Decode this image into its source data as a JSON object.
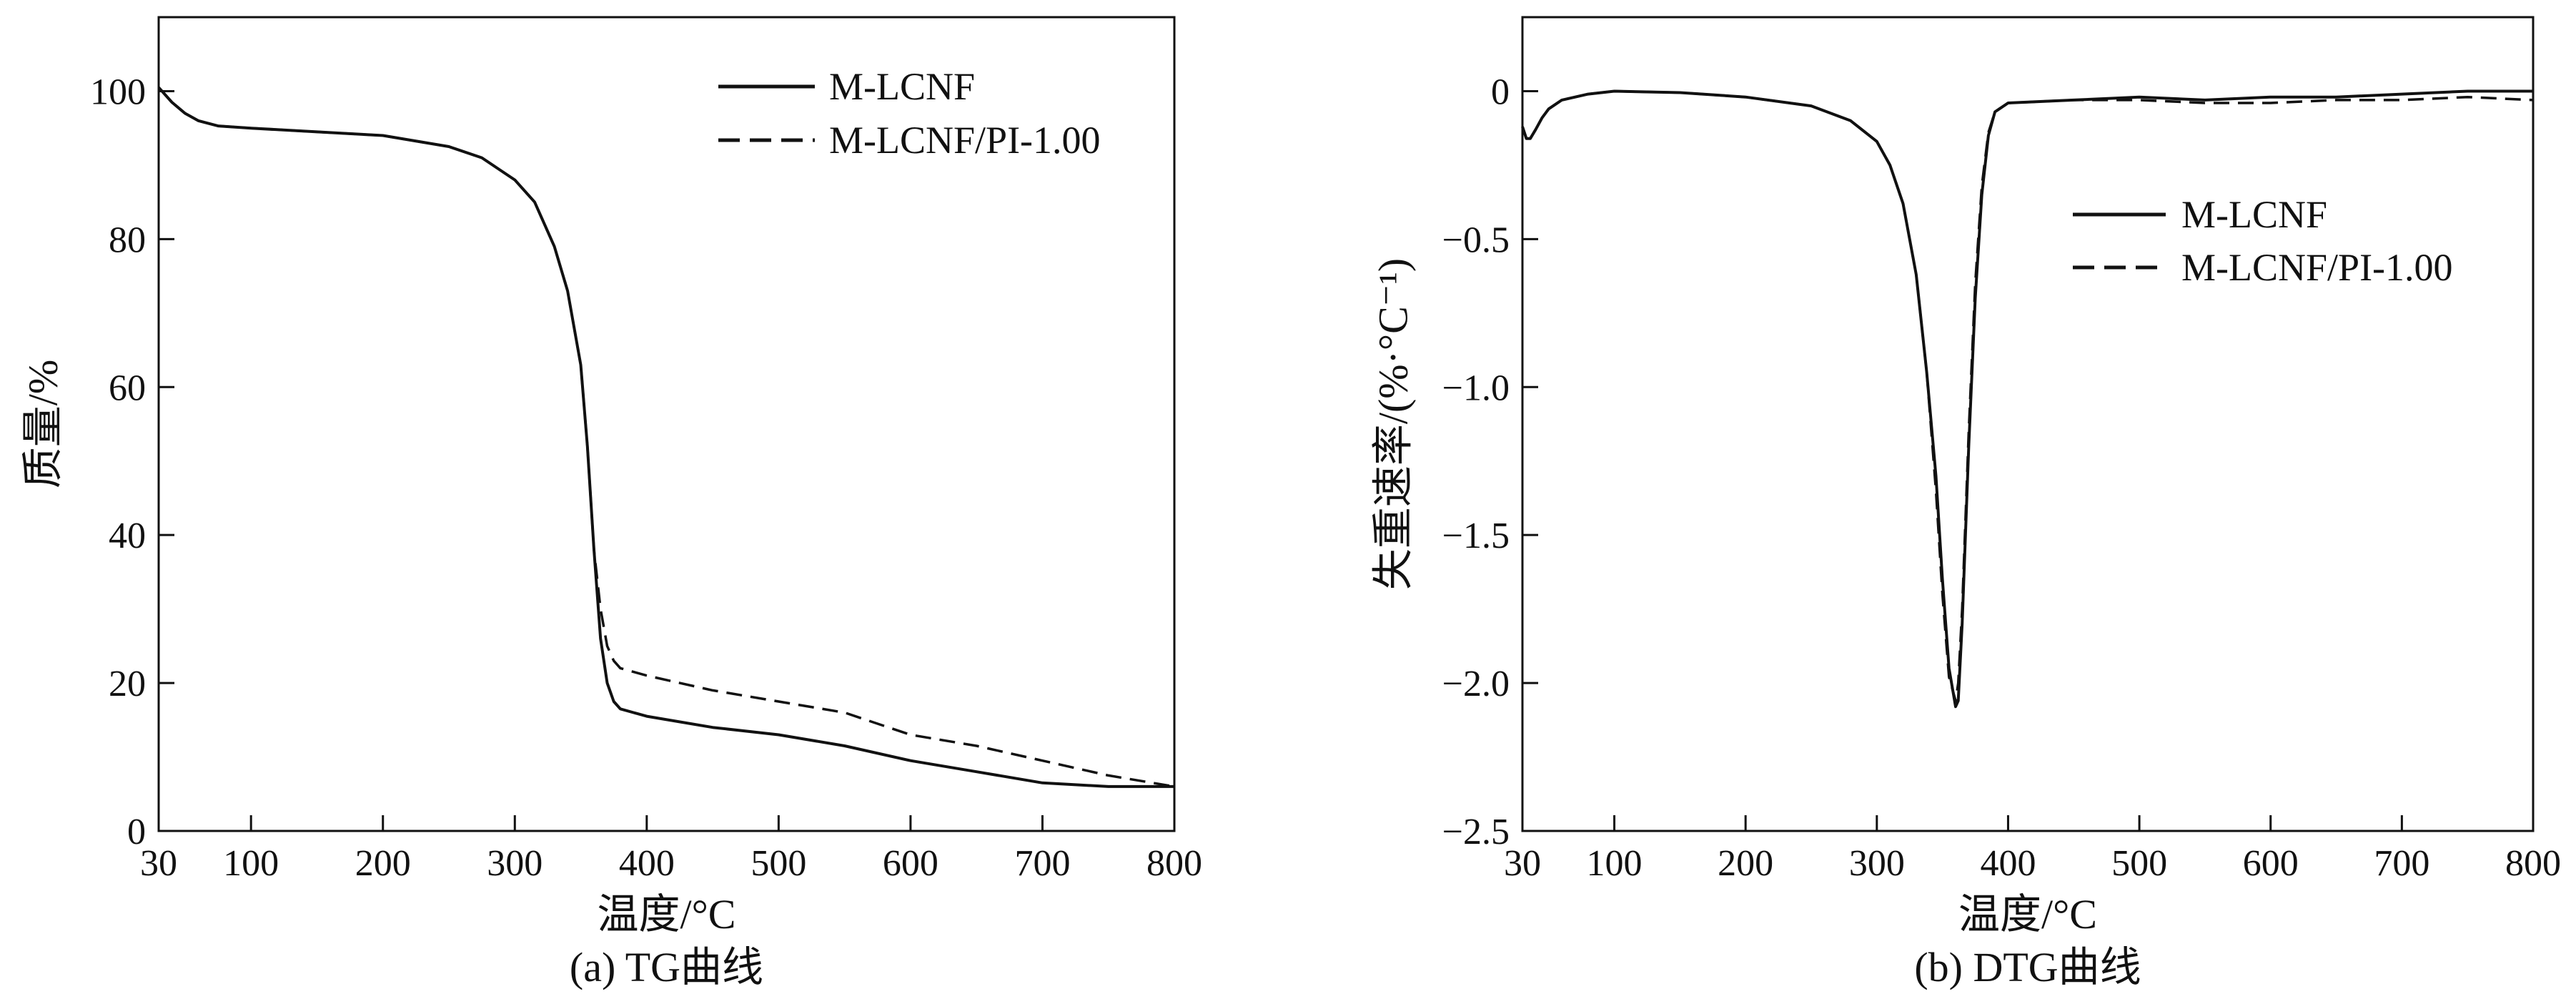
{
  "chart_data": [
    {
      "type": "line",
      "caption": "(a) TG曲线",
      "xlabel": "温度/°C",
      "ylabel": "质量/%",
      "xlim": [
        30,
        800
      ],
      "ylim": [
        0,
        110
      ],
      "xticks": [
        30,
        100,
        200,
        300,
        400,
        500,
        600,
        700,
        800
      ],
      "yticks": [
        0,
        20,
        40,
        60,
        80,
        100
      ],
      "legend_position": "top-right",
      "series": [
        {
          "name": "M-LCNF",
          "style": "solid",
          "x": [
            30,
            40,
            50,
            60,
            75,
            100,
            150,
            200,
            250,
            275,
            300,
            315,
            330,
            340,
            350,
            355,
            360,
            365,
            370,
            375,
            380,
            390,
            400,
            450,
            500,
            550,
            600,
            650,
            700,
            750,
            800
          ],
          "y": [
            100.5,
            98.5,
            97,
            96,
            95.3,
            95,
            94.5,
            94,
            92.5,
            91,
            88,
            85,
            79,
            73,
            63,
            52,
            38,
            26,
            20,
            17.5,
            16.5,
            16,
            15.5,
            14,
            13,
            11.5,
            9.5,
            8,
            6.5,
            6,
            6
          ]
        },
        {
          "name": "M-LCNF/PI-1.00",
          "style": "dashed",
          "x": [
            30,
            40,
            50,
            60,
            75,
            100,
            150,
            200,
            250,
            275,
            300,
            315,
            330,
            340,
            350,
            355,
            360,
            365,
            370,
            375,
            380,
            390,
            400,
            450,
            500,
            550,
            600,
            650,
            700,
            750,
            800
          ],
          "y": [
            100.5,
            98.5,
            97,
            96,
            95.3,
            95,
            94.5,
            94,
            92.5,
            91,
            88,
            85,
            79,
            73,
            63,
            52,
            38,
            30,
            25,
            23,
            22,
            21.5,
            21,
            19,
            17.5,
            16,
            13,
            11.5,
            9.5,
            7.5,
            6
          ]
        }
      ]
    },
    {
      "type": "line",
      "caption": "(b) DTG曲线",
      "xlabel": "温度/°C",
      "ylabel": "失重速率/(%·°C⁻¹)",
      "xlim": [
        30,
        800
      ],
      "ylim": [
        -2.5,
        0.25
      ],
      "xticks": [
        30,
        100,
        200,
        300,
        400,
        500,
        600,
        700,
        800
      ],
      "yticks": [
        -2.5,
        -2.0,
        -1.5,
        -1.0,
        -0.5,
        0
      ],
      "ytick_labels": [
        "−2.5",
        "−2.0",
        "−1.5",
        "−1.0",
        "−0.5",
        "0"
      ],
      "legend_position": "center-right",
      "series": [
        {
          "name": "M-LCNF",
          "style": "solid",
          "x": [
            30,
            33,
            36,
            40,
            45,
            50,
            60,
            80,
            100,
            150,
            200,
            250,
            280,
            300,
            310,
            320,
            330,
            338,
            345,
            350,
            355,
            360,
            362,
            365,
            370,
            375,
            380,
            385,
            390,
            400,
            450,
            500,
            550,
            600,
            650,
            700,
            750,
            800
          ],
          "y": [
            -0.12,
            -0.16,
            -0.16,
            -0.13,
            -0.09,
            -0.06,
            -0.03,
            -0.01,
            0,
            -0.005,
            -0.02,
            -0.05,
            -0.1,
            -0.17,
            -0.25,
            -0.38,
            -0.62,
            -0.95,
            -1.3,
            -1.65,
            -1.95,
            -2.08,
            -2.06,
            -1.8,
            -1.2,
            -0.7,
            -0.35,
            -0.15,
            -0.07,
            -0.04,
            -0.03,
            -0.02,
            -0.03,
            -0.02,
            -0.02,
            -0.01,
            0,
            0
          ]
        },
        {
          "name": "M-LCNF/PI-1.00",
          "style": "dashed",
          "x": [
            30,
            33,
            36,
            40,
            45,
            50,
            60,
            80,
            100,
            150,
            200,
            250,
            280,
            300,
            310,
            320,
            330,
            338,
            345,
            350,
            355,
            360,
            362,
            365,
            370,
            375,
            380,
            385,
            390,
            400,
            450,
            500,
            550,
            600,
            650,
            700,
            750,
            800
          ],
          "y": [
            -0.12,
            -0.16,
            -0.16,
            -0.13,
            -0.09,
            -0.06,
            -0.03,
            -0.01,
            0,
            -0.005,
            -0.02,
            -0.05,
            -0.1,
            -0.17,
            -0.25,
            -0.38,
            -0.62,
            -0.95,
            -1.35,
            -1.7,
            -1.98,
            -2.06,
            -2.0,
            -1.75,
            -1.15,
            -0.65,
            -0.32,
            -0.14,
            -0.07,
            -0.04,
            -0.03,
            -0.03,
            -0.04,
            -0.04,
            -0.03,
            -0.03,
            -0.02,
            -0.03
          ]
        }
      ]
    }
  ]
}
